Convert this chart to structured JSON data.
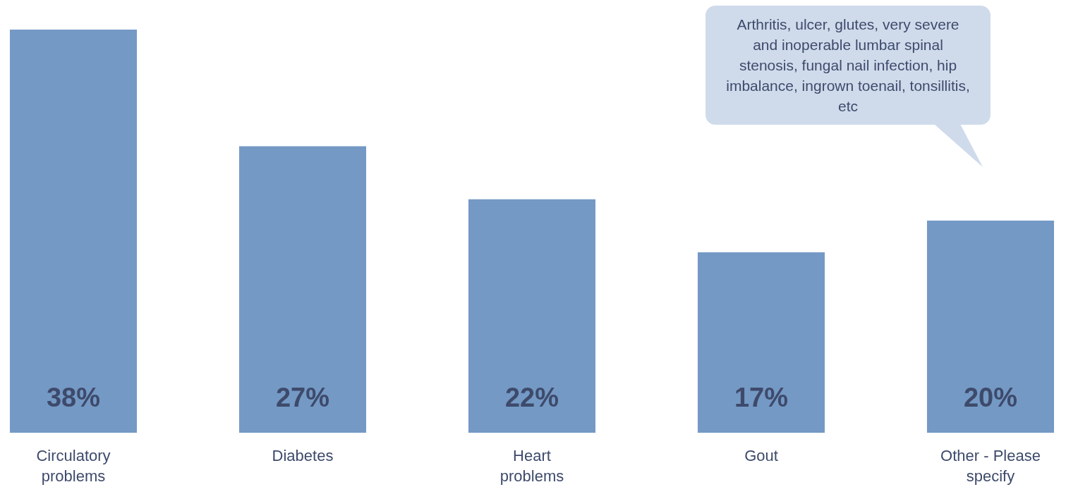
{
  "chart_data": {
    "type": "bar",
    "categories": [
      "Circulatory problems",
      "Diabetes",
      "Heart problems",
      "Gout",
      "Other - Please specify"
    ],
    "values": [
      38,
      27,
      22,
      17,
      20
    ],
    "value_labels": [
      "38%",
      "27%",
      "22%",
      "17%",
      "20%"
    ],
    "color": "#7499c5",
    "annotations": [
      "Arthritis, ulcer, glutes, very severe and inoperable lumbar spinal stenosis, fungal nail infection, hip imbalance, ingrown toenail, tonsillitis, etc"
    ]
  }
}
